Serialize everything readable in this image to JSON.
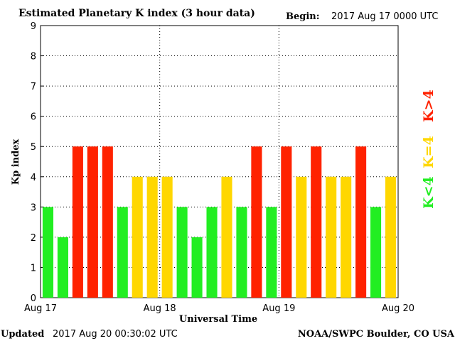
{
  "header": {
    "title": "Estimated Planetary K index (3 hour data)",
    "begin_label": "Begin:",
    "begin_value": "2017 Aug 17 0000 UTC"
  },
  "footer": {
    "updated_label": "Updated",
    "updated_value": "2017 Aug 20 00:30:02 UTC",
    "source": "NOAA/SWPC Boulder, CO USA"
  },
  "legend": {
    "low": "K<4",
    "mid": "K=4",
    "high": "K>4"
  },
  "colors": {
    "low": "#22ee22",
    "mid": "#ffd700",
    "high": "#ff2200",
    "grid": "#000000"
  },
  "chart_data": {
    "type": "bar",
    "title": "Estimated Planetary K index (3 hour data)",
    "xlabel": "Universal Time",
    "ylabel": "Kp index",
    "ylim": [
      0,
      9
    ],
    "yticks": [
      0,
      1,
      2,
      3,
      4,
      5,
      6,
      7,
      8,
      9
    ],
    "x_tick_labels": [
      "Aug 17",
      "Aug 18",
      "Aug 19",
      "Aug 20"
    ],
    "grid": true,
    "interval_hours": 3,
    "values": [
      3,
      2,
      5,
      5,
      5,
      3,
      4,
      4,
      4,
      3,
      2,
      3,
      4,
      3,
      5,
      3,
      5,
      4,
      5,
      4,
      4,
      5,
      3,
      4
    ]
  }
}
